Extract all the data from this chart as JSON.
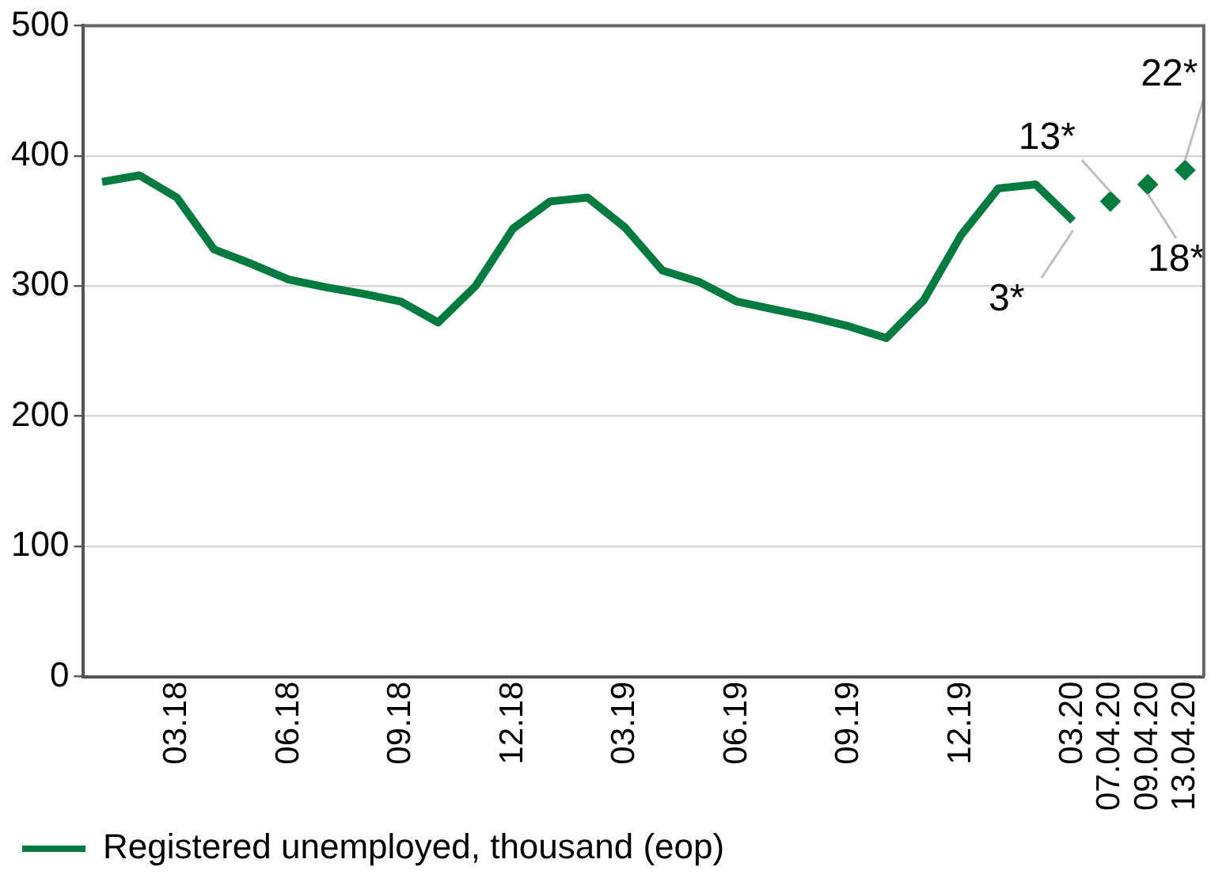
{
  "chart_data": {
    "type": "line",
    "categories": [
      null,
      null,
      "03.18",
      null,
      null,
      "06.18",
      null,
      null,
      "09.18",
      null,
      null,
      "12.18",
      null,
      null,
      "03.19",
      null,
      null,
      "06.19",
      null,
      null,
      "09.19",
      null,
      null,
      "12.19",
      null,
      null,
      "03.20",
      "07.04.20",
      "09.04.20",
      "13.04.20"
    ],
    "series": [
      {
        "name": "Registered unemployed, thousand (eop)",
        "color": "#037a40",
        "values": [
          380,
          385,
          368,
          328,
          317,
          305,
          299,
          294,
          288,
          272,
          300,
          344,
          365,
          368,
          345,
          312,
          303,
          288,
          282,
          276,
          269,
          260,
          289,
          339,
          375,
          378,
          350,
          null,
          null,
          null
        ]
      },
      {
        "type": "scatter",
        "color": "#037a40",
        "marker": "diamond",
        "values": [
          null,
          null,
          null,
          null,
          null,
          null,
          null,
          null,
          null,
          null,
          null,
          null,
          null,
          null,
          null,
          null,
          null,
          null,
          null,
          null,
          null,
          null,
          null,
          null,
          null,
          null,
          null,
          365,
          378,
          389
        ]
      }
    ],
    "ylim": [
      0,
      500
    ],
    "yticks": [
      0,
      100,
      200,
      300,
      400,
      500
    ],
    "grid": "y",
    "legend": "bottom left",
    "line_style": "solid",
    "annotations": [
      {
        "text": "3*",
        "x": "03.20",
        "y": 350
      },
      {
        "text": "13*",
        "x": "07.04.20",
        "y": 365
      },
      {
        "text": "18*",
        "x": "09.04.20",
        "y": 378
      },
      {
        "text": "22*",
        "x": "13.04.20",
        "y": 389
      }
    ]
  }
}
